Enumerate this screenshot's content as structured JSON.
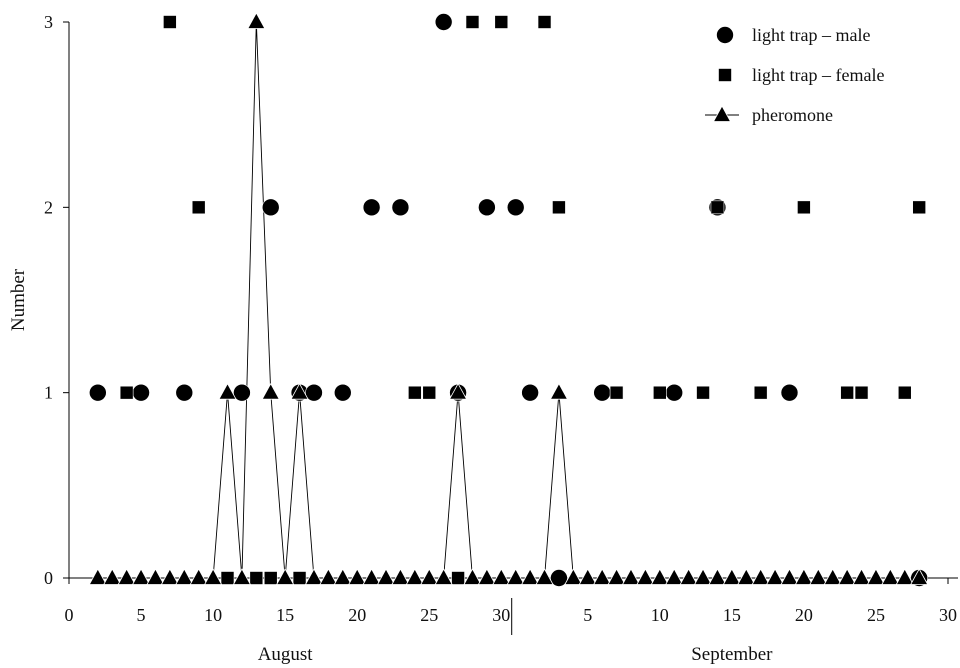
{
  "chart_data": {
    "type": "scatter",
    "title": "",
    "xlabel": "",
    "ylabel": "Number",
    "xlim": [
      0,
      61
    ],
    "ylim": [
      0,
      3
    ],
    "grid": false,
    "legend_position": "top-right",
    "y_ticks": [
      "0",
      "1",
      "2",
      "3"
    ],
    "x_tick_groups": [
      {
        "month": "August",
        "ticks": [
          {
            "x": 0,
            "label": "0"
          },
          {
            "x": 5,
            "label": "5"
          },
          {
            "x": 10,
            "label": "10"
          },
          {
            "x": 15,
            "label": "15"
          },
          {
            "x": 20,
            "label": "20"
          },
          {
            "x": 25,
            "label": "25"
          },
          {
            "x": 30,
            "label": "30"
          }
        ]
      },
      {
        "month": "September",
        "ticks": [
          {
            "x": 36,
            "label": "5"
          },
          {
            "x": 41,
            "label": "10"
          },
          {
            "x": 46,
            "label": "15"
          },
          {
            "x": 51,
            "label": "20"
          },
          {
            "x": 56,
            "label": "25"
          },
          {
            "x": 61,
            "label": "30"
          }
        ]
      }
    ],
    "months": [
      {
        "name": "August",
        "center_x": 15
      },
      {
        "name": "September",
        "center_x": 46
      }
    ],
    "month_divider_x": 31,
    "series": [
      {
        "name": "light trap – male",
        "marker": "circle",
        "line": false,
        "points": [
          [
            2,
            1
          ],
          [
            5,
            1
          ],
          [
            8,
            1
          ],
          [
            12,
            1
          ],
          [
            14,
            2
          ],
          [
            16,
            1
          ],
          [
            17,
            1
          ],
          [
            19,
            1
          ],
          [
            21,
            2
          ],
          [
            23,
            2
          ],
          [
            26,
            3
          ],
          [
            27,
            1
          ],
          [
            29,
            2
          ],
          [
            31,
            2
          ],
          [
            32,
            1
          ],
          [
            34,
            0
          ],
          [
            37,
            1
          ],
          [
            42,
            1
          ],
          [
            45,
            2
          ],
          [
            50,
            1
          ],
          [
            59,
            0
          ]
        ]
      },
      {
        "name": "light trap – female",
        "marker": "square",
        "line": false,
        "points": [
          [
            4,
            1
          ],
          [
            7,
            3
          ],
          [
            9,
            2
          ],
          [
            11,
            0
          ],
          [
            13,
            0
          ],
          [
            14,
            0
          ],
          [
            16,
            0
          ],
          [
            24,
            1
          ],
          [
            25,
            1
          ],
          [
            27,
            0
          ],
          [
            28,
            3
          ],
          [
            30,
            3
          ],
          [
            33,
            3
          ],
          [
            34,
            2
          ],
          [
            38,
            1
          ],
          [
            41,
            1
          ],
          [
            44,
            1
          ],
          [
            45,
            2
          ],
          [
            48,
            1
          ],
          [
            51,
            2
          ],
          [
            54,
            1
          ],
          [
            55,
            1
          ],
          [
            58,
            1
          ],
          [
            59,
            2
          ]
        ]
      },
      {
        "name": "pheromone",
        "marker": "triangle",
        "line": true,
        "x": [
          2,
          3,
          4,
          5,
          6,
          7,
          8,
          9,
          10,
          11,
          12,
          13,
          14,
          15,
          16,
          17,
          18,
          19,
          20,
          21,
          22,
          23,
          24,
          25,
          26,
          27,
          28,
          29,
          30,
          31,
          32,
          33,
          34,
          35,
          36,
          37,
          38,
          39,
          40,
          41,
          42,
          43,
          44,
          45,
          46,
          47,
          48,
          49,
          50,
          51,
          52,
          53,
          54,
          55,
          56,
          57,
          58,
          59
        ],
        "values": [
          0,
          0,
          0,
          0,
          0,
          0,
          0,
          0,
          0,
          1,
          0,
          3,
          1,
          0,
          1,
          0,
          0,
          0,
          0,
          0,
          0,
          0,
          0,
          0,
          0,
          1,
          0,
          0,
          0,
          0,
          0,
          0,
          1,
          0,
          0,
          0,
          0,
          0,
          0,
          0,
          0,
          0,
          0,
          0,
          0,
          0,
          0,
          0,
          0,
          0,
          0,
          0,
          0,
          0,
          0,
          0,
          0,
          0
        ]
      }
    ]
  }
}
